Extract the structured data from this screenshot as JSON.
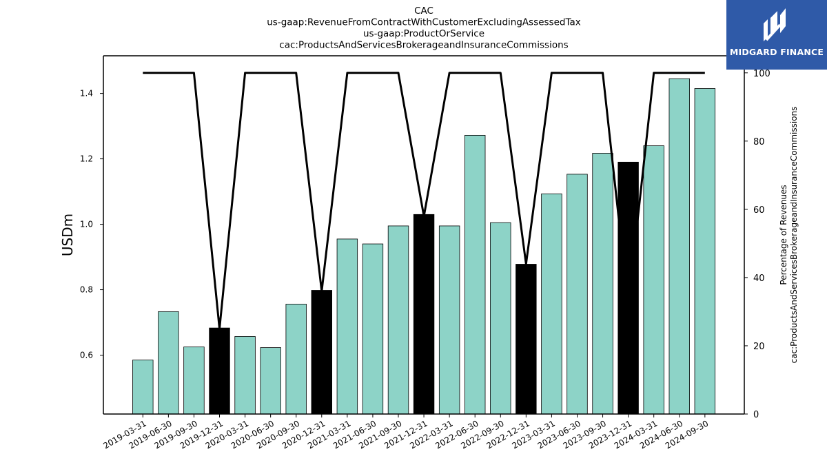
{
  "titles": [
    "CAC",
    "us-gaap:RevenueFromContractWithCustomerExcludingAssessedTax",
    "us-gaap:ProductOrService",
    "cac:ProductsAndServicesBrokerageandInsuranceCommissions"
  ],
  "logo": {
    "text": "MIDGARD FINANCE",
    "color": "#2f5aa8"
  },
  "colors": {
    "bar": "#8dd3c7",
    "bar_highlight": "#000000",
    "line": "#000000"
  },
  "chart_data": {
    "type": "bar",
    "title": "CAC us-gaap:RevenueFromContractWithCustomerExcludingAssessedTax us-gaap:ProductOrService cac:ProductsAndServicesBrokerageandInsuranceCommissions",
    "categories": [
      "2019-03-31",
      "2019-06-30",
      "2019-09-30",
      "2019-12-31",
      "2020-03-31",
      "2020-06-30",
      "2020-09-30",
      "2020-12-31",
      "2021-03-31",
      "2021-06-30",
      "2021-09-30",
      "2021-12-31",
      "2022-03-31",
      "2022-06-30",
      "2022-09-30",
      "2022-12-31",
      "2023-03-31",
      "2023-06-30",
      "2023-09-30",
      "2023-12-31",
      "2024-03-31",
      "2024-06-30",
      "2024-09-30"
    ],
    "series": [
      {
        "axis": "left",
        "type": "bar",
        "values": [
          0.585,
          0.733,
          0.625,
          0.683,
          0.657,
          0.623,
          0.756,
          0.798,
          0.955,
          0.94,
          0.995,
          1.03,
          0.995,
          1.272,
          1.005,
          0.878,
          1.093,
          1.153,
          1.217,
          1.19,
          1.24,
          1.445,
          1.415
        ],
        "highlighted": [
          false,
          false,
          false,
          true,
          false,
          false,
          false,
          true,
          false,
          false,
          false,
          true,
          false,
          false,
          false,
          true,
          false,
          false,
          false,
          true,
          false,
          false,
          false
        ]
      },
      {
        "axis": "right",
        "type": "line",
        "values": [
          100,
          100,
          100,
          25,
          100,
          100,
          100,
          36,
          100,
          100,
          100,
          58,
          100,
          100,
          100,
          44,
          100,
          100,
          100,
          32,
          100,
          100,
          100
        ]
      }
    ],
    "ylabel": "USDm",
    "ylabel_right": [
      "Percentage of Revenues",
      "cac:ProductsAndServicesBrokerageandInsuranceCommissions"
    ],
    "ylim": [
      0.42,
      1.515
    ],
    "yticks": [
      0.6,
      0.8,
      1.0,
      1.2,
      1.4
    ],
    "ylim_right": [
      0,
      105
    ],
    "yticks_right": [
      0,
      20,
      40,
      60,
      80,
      100
    ],
    "grid": false,
    "legend": "none"
  }
}
